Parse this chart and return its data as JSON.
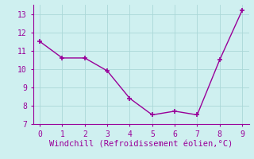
{
  "x": [
    0,
    1,
    2,
    3,
    4,
    5,
    6,
    7,
    8,
    9
  ],
  "y": [
    11.5,
    10.6,
    10.6,
    9.9,
    8.4,
    7.5,
    7.7,
    7.5,
    10.5,
    13.2
  ],
  "line_color": "#990099",
  "marker": "+",
  "marker_size": 4,
  "marker_linewidth": 1.2,
  "line_width": 1.0,
  "xlabel": "Windchill (Refroidissement éolien,°C)",
  "xlabel_fontsize": 7.5,
  "xlim": [
    -0.3,
    9.3
  ],
  "ylim": [
    7.0,
    13.5
  ],
  "yticks": [
    7,
    8,
    9,
    10,
    11,
    12,
    13
  ],
  "xticks": [
    0,
    1,
    2,
    3,
    4,
    5,
    6,
    7,
    8,
    9
  ],
  "background_color": "#cff0f0",
  "grid_color": "#aad8d8",
  "tick_fontsize": 7,
  "figsize": [
    3.2,
    2.0
  ],
  "dpi": 100
}
